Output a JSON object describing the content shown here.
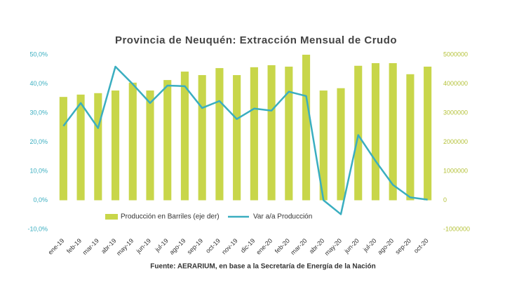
{
  "chart_data": {
    "type": "bar-line",
    "title": "Provincia de Neuquén: Extracción Mensual de Crudo",
    "source": "Fuente: AERARIUM, en base a la Secretaría de Energía de la Nación",
    "categories": [
      "ene-19",
      "feb-19",
      "mar-19",
      "abr-19",
      "may-19",
      "jun-19",
      "jul-19",
      "ago-19",
      "sep-19",
      "oct-19",
      "nov-19",
      "dic-19",
      "ene-20",
      "feb-20",
      "mar-20",
      "abr-20",
      "may-20",
      "jun-20",
      "jul-20",
      "ago-20",
      "sep-20",
      "oct-20"
    ],
    "series": [
      {
        "name": "Producción en Barriles (eje der)",
        "type": "bar",
        "axis": "y2",
        "color": "#c8d64a",
        "values": [
          3550000,
          3630000,
          3680000,
          3770000,
          4040000,
          3770000,
          4130000,
          4420000,
          4300000,
          4540000,
          4300000,
          4570000,
          4640000,
          4590000,
          5000000,
          3770000,
          3850000,
          4620000,
          4710000,
          4710000,
          4330000,
          4590000
        ]
      },
      {
        "name": "Var a/a Producción",
        "type": "line",
        "axis": "y",
        "color": "#3aaec0",
        "values": [
          25.5,
          33.4,
          24.8,
          45.9,
          39.9,
          33.4,
          39.4,
          39.2,
          31.7,
          34.1,
          27.9,
          31.5,
          30.8,
          37.3,
          35.8,
          0,
          -4.8,
          22.4,
          13.5,
          5.3,
          1.0,
          0.2
        ]
      }
    ],
    "ylim": [
      -10,
      50
    ],
    "yticks": [
      {
        "value": -10,
        "label": "-10,0%"
      },
      {
        "value": 0,
        "label": "0,0%"
      },
      {
        "value": 10,
        "label": "10,0%"
      },
      {
        "value": 20,
        "label": "20,0%"
      },
      {
        "value": 30,
        "label": "30,0%"
      },
      {
        "value": 40,
        "label": "40,0%"
      },
      {
        "value": 50,
        "label": "50,0%"
      }
    ],
    "y2lim": [
      -1000000,
      5000000
    ],
    "y2ticks": [
      -1000000,
      0,
      1000000,
      2000000,
      3000000,
      4000000,
      5000000
    ]
  }
}
